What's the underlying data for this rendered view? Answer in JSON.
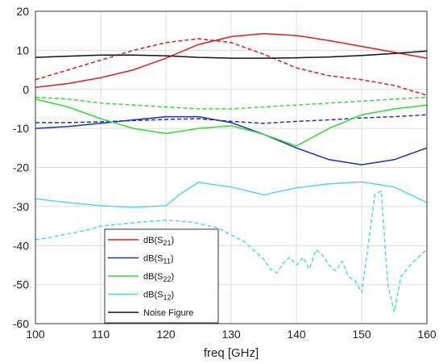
{
  "chart_data": {
    "type": "line",
    "xlabel": "freq [GHz]",
    "ylabel": "",
    "xlim": [
      100,
      160
    ],
    "ylim": [
      -60,
      20
    ],
    "xticks": [
      100,
      110,
      120,
      130,
      140,
      150,
      160
    ],
    "yticks": [
      -60,
      -50,
      -40,
      -30,
      -20,
      -10,
      0,
      10,
      20
    ],
    "grid": true,
    "legend_position": "bottom-left",
    "legend": [
      {
        "base": "dB(S",
        "sub": "21",
        "close": ")",
        "color": "#e8191e"
      },
      {
        "base": "dB(S",
        "sub": "11",
        "close": ")",
        "color": "#1f2fbd"
      },
      {
        "base": "dB(S",
        "sub": "22",
        "close": ")",
        "color": "#2ee02e"
      },
      {
        "base": "dB(S",
        "sub": "12",
        "close": ")",
        "color": "#55d6ee"
      },
      {
        "base": "Noise Figure",
        "sub": "",
        "close": "",
        "color": "#111111"
      }
    ],
    "series": [
      {
        "color": "#e8191e",
        "dash": false,
        "x": [
          100,
          105,
          110,
          115,
          120,
          125,
          130,
          135,
          140,
          145,
          150,
          155,
          160
        ],
        "y": [
          0.5,
          1.5,
          3,
          5,
          8,
          11.5,
          13.5,
          14.3,
          13.8,
          12.5,
          11,
          9.5,
          8
        ]
      },
      {
        "color": "#e8191e",
        "dash": true,
        "x": [
          100,
          105,
          110,
          115,
          120,
          125,
          130,
          135,
          140,
          145,
          150,
          155,
          160
        ],
        "y": [
          2.5,
          5,
          7.5,
          10,
          12,
          13,
          12,
          9,
          5.5,
          3.5,
          2.5,
          1,
          -1.5
        ]
      },
      {
        "color": "#1f2fbd",
        "dash": false,
        "x": [
          100,
          105,
          110,
          115,
          120,
          125,
          130,
          135,
          140,
          145,
          150,
          155,
          160
        ],
        "y": [
          -10,
          -9.5,
          -8.7,
          -7.8,
          -7,
          -7,
          -8.5,
          -11.5,
          -15,
          -18,
          -19.3,
          -18,
          -15
        ]
      },
      {
        "color": "#1f2fbd",
        "dash": true,
        "x": [
          100,
          105,
          110,
          115,
          120,
          125,
          130,
          135,
          140,
          145,
          150,
          155,
          160
        ],
        "y": [
          -8.5,
          -8.5,
          -8.3,
          -8,
          -7.7,
          -7.5,
          -8.2,
          -8.7,
          -8.2,
          -7.8,
          -7.3,
          -7,
          -6.5
        ]
      },
      {
        "color": "#2ee02e",
        "dash": false,
        "x": [
          100,
          105,
          110,
          115,
          120,
          125,
          130,
          135,
          140,
          145,
          150,
          155,
          160
        ],
        "y": [
          -2.5,
          -4.5,
          -7.5,
          -10,
          -11.3,
          -10,
          -9.3,
          -11.5,
          -14.5,
          -10,
          -6.5,
          -5,
          -4
        ]
      },
      {
        "color": "#2ee02e",
        "dash": true,
        "x": [
          100,
          105,
          110,
          115,
          120,
          125,
          130,
          135,
          140,
          145,
          150,
          155,
          160
        ],
        "y": [
          -2,
          -2.5,
          -3.5,
          -4,
          -4.5,
          -5,
          -5,
          -4.5,
          -4,
          -3.5,
          -3,
          -2.5,
          -2
        ]
      },
      {
        "color": "#55d6ee",
        "dash": false,
        "x": [
          100,
          105,
          110,
          115,
          120,
          122,
          125,
          130,
          135,
          140,
          145,
          150,
          155,
          160
        ],
        "y": [
          -28,
          -29,
          -29.8,
          -30.2,
          -29.8,
          -27,
          -23.8,
          -25,
          -27,
          -25.2,
          -24.2,
          -23.7,
          -25,
          -29
        ]
      },
      {
        "color": "#55d6ee",
        "dash": true,
        "x": [
          100,
          102,
          105,
          108,
          110,
          113,
          116,
          120,
          124,
          128,
          132,
          134,
          135,
          136,
          137,
          138,
          139,
          140,
          141,
          142,
          143,
          144,
          145,
          146,
          147,
          148,
          149,
          150,
          151,
          152,
          153,
          154,
          155,
          156,
          157,
          158,
          160
        ],
        "y": [
          -38.5,
          -38,
          -37,
          -36,
          -35,
          -34.5,
          -34,
          -33.5,
          -34,
          -35.5,
          -39,
          -42,
          -43.5,
          -46,
          -47,
          -44.5,
          -43,
          -45,
          -43,
          -46,
          -41,
          -42.5,
          -45,
          -46.5,
          -44,
          -48,
          -49,
          -52,
          -40,
          -27,
          -26,
          -50,
          -57,
          -48,
          -46,
          -44,
          -41
        ]
      },
      {
        "color": "#111111",
        "dash": false,
        "x": [
          100,
          105,
          110,
          115,
          120,
          125,
          130,
          135,
          140,
          145,
          150,
          155,
          160
        ],
        "y": [
          8.2,
          8.5,
          8.8,
          8.8,
          8.6,
          8.2,
          8,
          8,
          8.1,
          8.3,
          8.7,
          9.2,
          9.8
        ]
      }
    ]
  }
}
